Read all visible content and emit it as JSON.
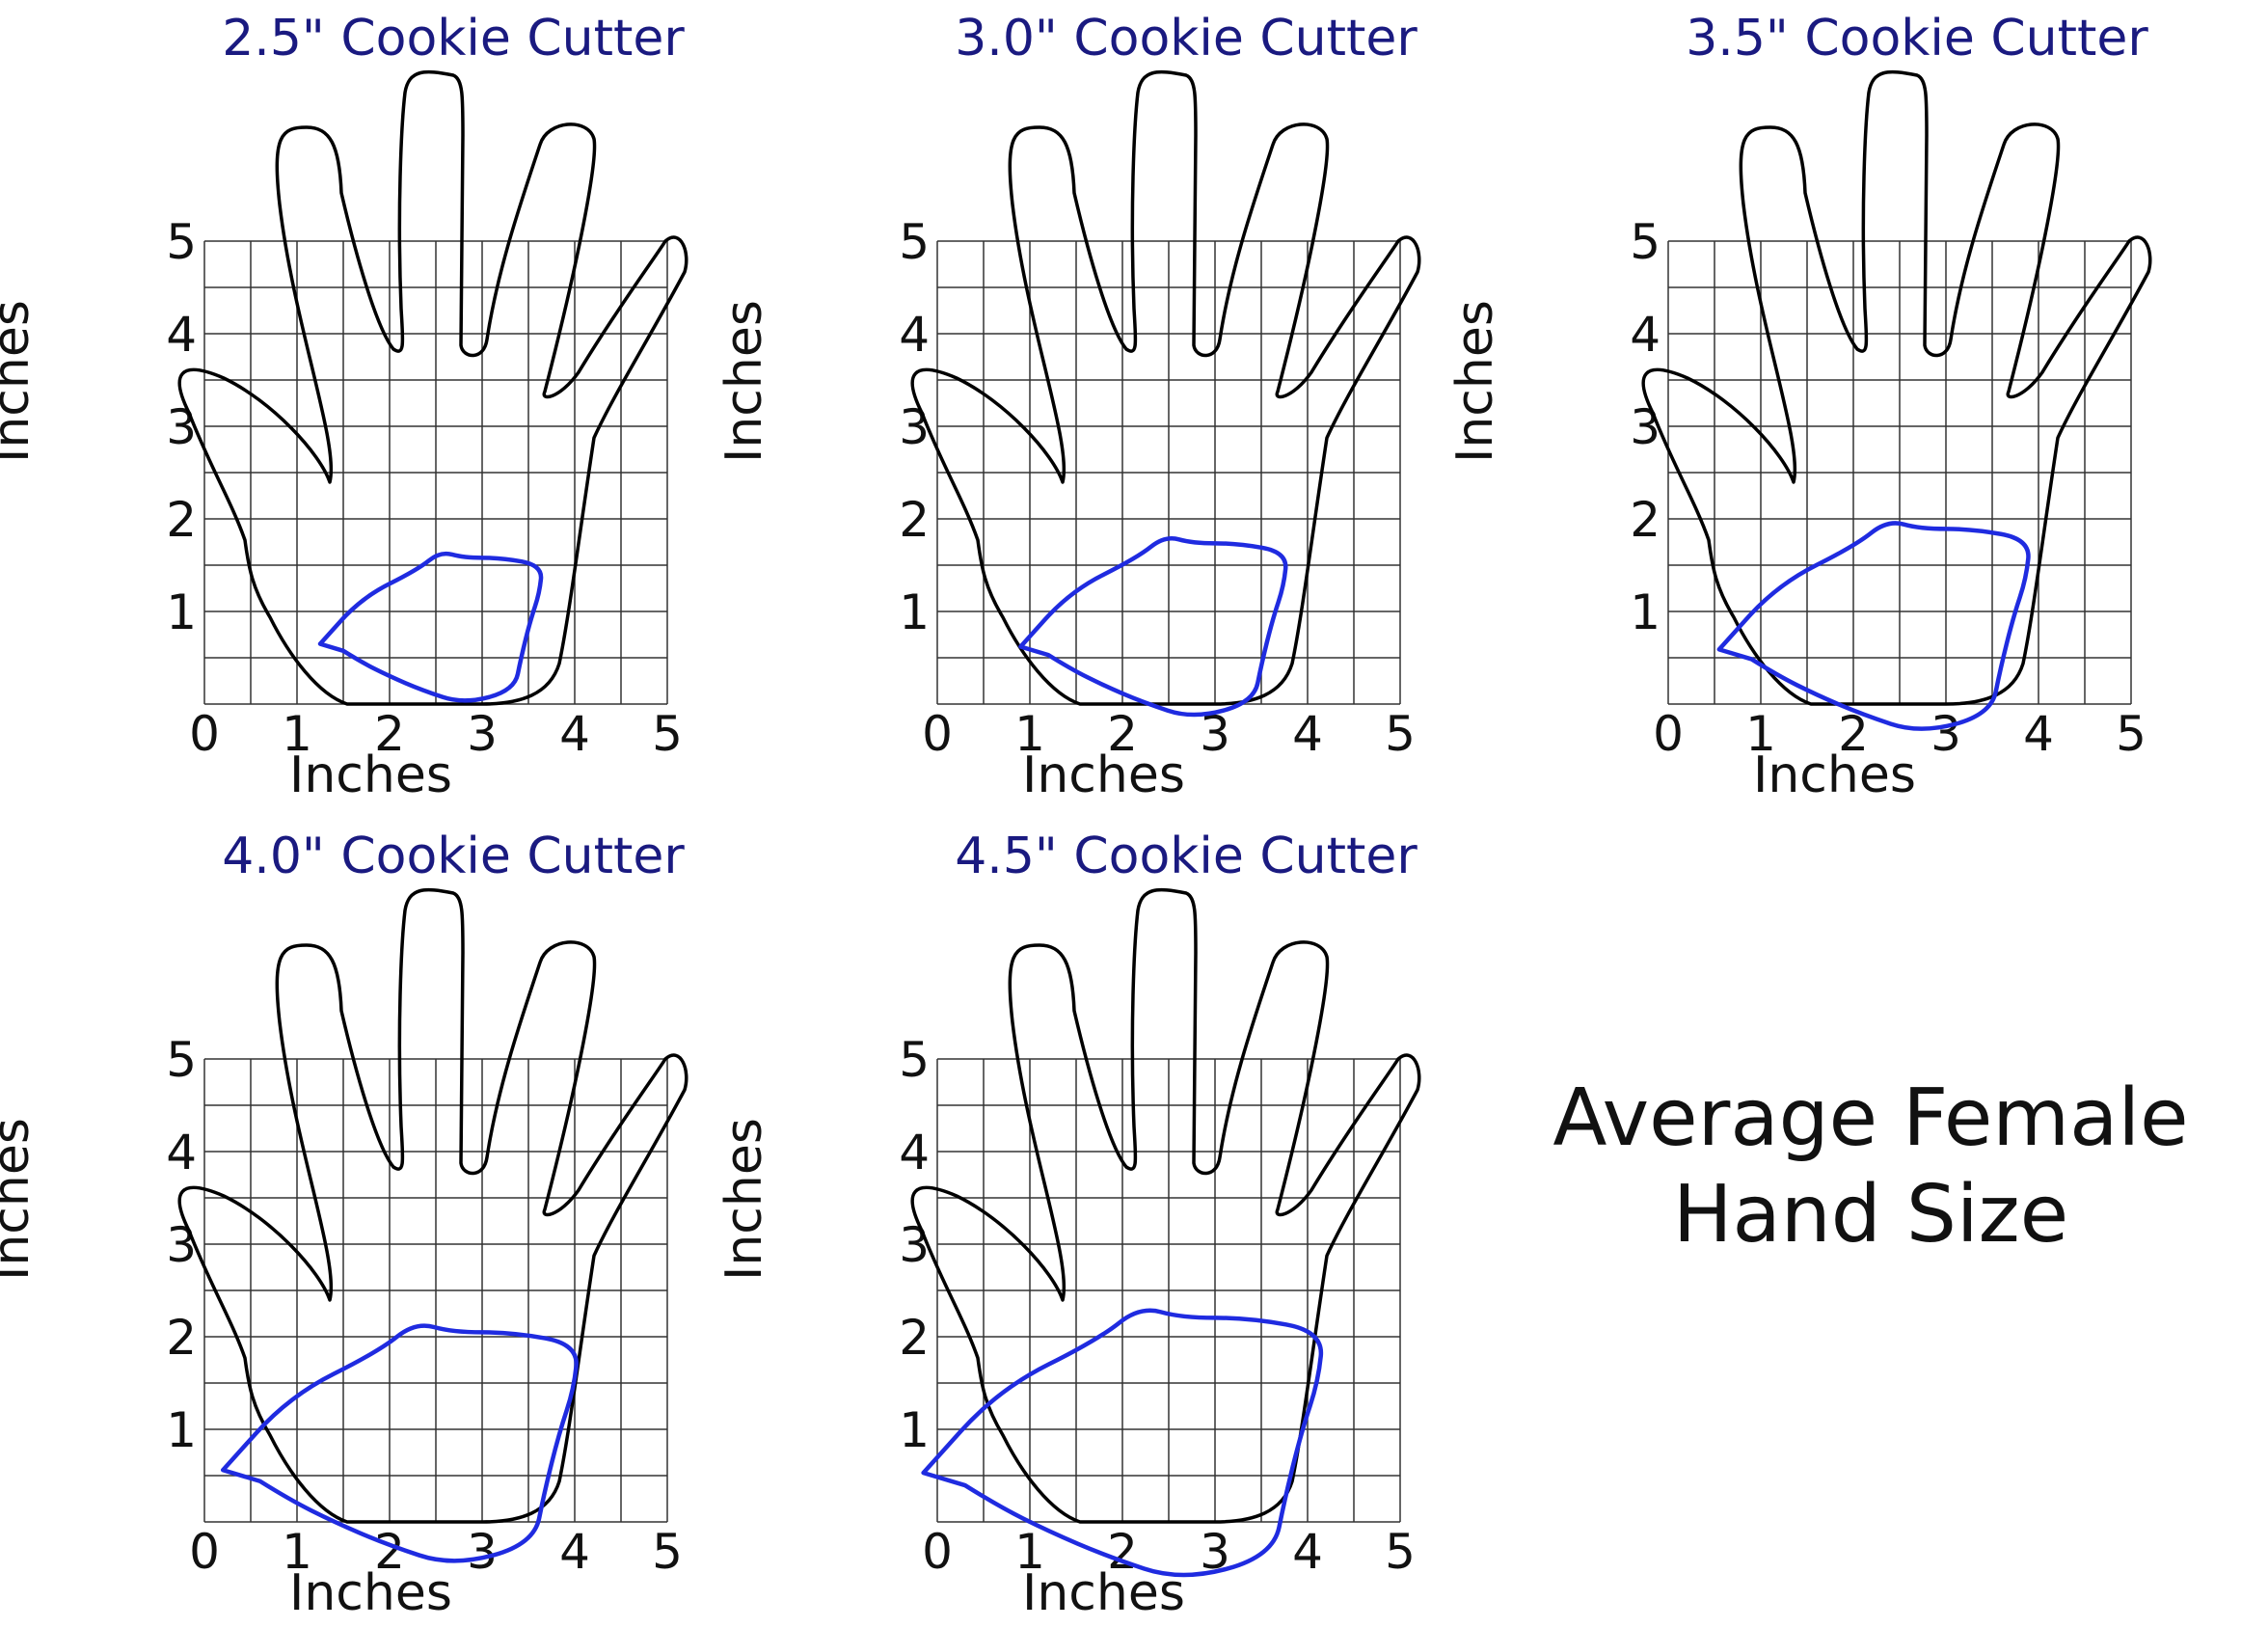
{
  "panels": [
    {
      "title": "2.5\" Cookie Cutter",
      "xlabel": "Inches",
      "ylabel": "Inches",
      "cutter_size_in": 2.5
    },
    {
      "title": "3.0\" Cookie Cutter",
      "xlabel": "Inches",
      "ylabel": "Inches",
      "cutter_size_in": 3.0
    },
    {
      "title": "3.5\" Cookie Cutter",
      "xlabel": "Inches",
      "ylabel": "Inches",
      "cutter_size_in": 3.5
    },
    {
      "title": "4.0\" Cookie Cutter",
      "xlabel": "Inches",
      "ylabel": "Inches",
      "cutter_size_in": 4.0
    },
    {
      "title": "4.5\" Cookie Cutter",
      "xlabel": "Inches",
      "ylabel": "Inches",
      "cutter_size_in": 4.5
    }
  ],
  "axis": {
    "min": 0,
    "max": 5,
    "ticks": [
      "0",
      "1",
      "2",
      "3",
      "4",
      "5"
    ],
    "yticks": [
      "1",
      "2",
      "3",
      "4",
      "5"
    ]
  },
  "caption": {
    "line1": "Average Female",
    "line2": "Hand Size"
  },
  "colors": {
    "hand": "#000000",
    "cutter": "#1f2be0",
    "title": "#1a1a80",
    "grid": "#333333"
  }
}
